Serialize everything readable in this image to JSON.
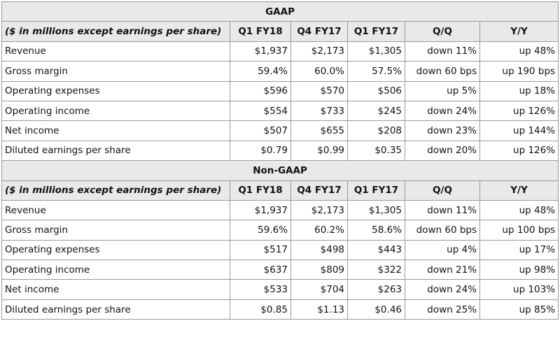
{
  "columns": [
    "Q1 FY18",
    "Q4 FY17",
    "Q1 FY17",
    "Q/Q",
    "Y/Y"
  ],
  "description_label": "($ in millions except earnings per share)",
  "sections": [
    {
      "title": "GAAP",
      "rows": [
        {
          "label": "Revenue",
          "values": [
            "$1,937",
            "$2,173",
            "$1,305",
            "down 11%",
            "up 48%"
          ]
        },
        {
          "label": "Gross margin",
          "values": [
            "59.4%",
            "60.0%",
            "57.5%",
            "down 60 bps",
            "up 190 bps"
          ]
        },
        {
          "label": "Operating expenses",
          "values": [
            "$596",
            "$570",
            "$506",
            "up 5%",
            "up 18%"
          ]
        },
        {
          "label": "Operating income",
          "values": [
            "$554",
            "$733",
            "$245",
            "down 24%",
            "up 126%"
          ]
        },
        {
          "label": "Net income",
          "values": [
            "$507",
            "$655",
            "$208",
            "down 23%",
            "up 144%"
          ]
        },
        {
          "label": "Diluted earnings per share",
          "values": [
            "$0.79",
            "$0.99",
            "$0.35",
            "down 20%",
            "up 126%"
          ]
        }
      ]
    },
    {
      "title": "Non-GAAP",
      "rows": [
        {
          "label": "Revenue",
          "values": [
            "$1,937",
            "$2,173",
            "$1,305",
            "down 11%",
            "up 48%"
          ]
        },
        {
          "label": "Gross margin",
          "values": [
            "59.6%",
            "60.2%",
            "58.6%",
            "down 60 bps",
            "up 100 bps"
          ]
        },
        {
          "label": "Operating expenses",
          "values": [
            "$517",
            "$498",
            "$443",
            "up 4%",
            "up 17%"
          ]
        },
        {
          "label": "Operating income",
          "values": [
            "$637",
            "$809",
            "$322",
            "down 21%",
            "up 98%"
          ]
        },
        {
          "label": "Net income",
          "values": [
            "$533",
            "$704",
            "$263",
            "down 24%",
            "up 103%"
          ]
        },
        {
          "label": "Diluted earnings per share",
          "values": [
            "$0.85",
            "$1.13",
            "$0.46",
            "down 25%",
            "up 85%"
          ]
        }
      ]
    }
  ]
}
